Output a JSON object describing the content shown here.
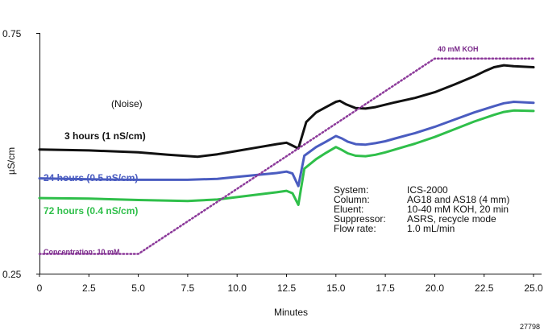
{
  "chart_data": {
    "type": "line",
    "xlabel": "Minutes",
    "ylabel": "µS/cm",
    "xlim": [
      0,
      25
    ],
    "ylim": [
      0.25,
      0.75
    ],
    "x_ticks": [
      "0",
      "2.5",
      "5.0",
      "7.5",
      "10.0",
      "12.5",
      "15.0",
      "17.5",
      "20.0",
      "22.5",
      "25.0"
    ],
    "y_ticks": [
      "0.75",
      "0.25"
    ],
    "y_tick_values": [
      0.75,
      0.25
    ],
    "colors": {
      "three_hours": "#111111",
      "twentyfour_hours": "#4a5cc0",
      "seventytwo_hours": "#2fbf4a",
      "concentration": "#8c3a9a"
    },
    "series": [
      {
        "key": "three_hours",
        "x": [
          0,
          2.5,
          5.0,
          6.5,
          8.0,
          9.0,
          10.0,
          11.0,
          12.0,
          12.5,
          12.8,
          13.1,
          13.5,
          14.0,
          14.5,
          15.0,
          15.2,
          15.5,
          16.0,
          16.5,
          17.0,
          17.5,
          18.0,
          19.0,
          20.0,
          21.0,
          22.0,
          22.5,
          23.0,
          23.5,
          24.0,
          25.0
        ],
        "y": [
          0.508,
          0.506,
          0.502,
          0.497,
          0.493,
          0.498,
          0.505,
          0.512,
          0.519,
          0.522,
          0.516,
          0.51,
          0.565,
          0.585,
          0.596,
          0.607,
          0.609,
          0.602,
          0.594,
          0.593,
          0.596,
          0.601,
          0.606,
          0.615,
          0.627,
          0.643,
          0.66,
          0.67,
          0.679,
          0.683,
          0.681,
          0.679
        ]
      },
      {
        "key": "twentyfour_hours",
        "x": [
          0,
          2.5,
          5.0,
          7.5,
          9.0,
          10.0,
          11.0,
          12.0,
          12.5,
          12.8,
          13.1,
          13.4,
          14.0,
          14.5,
          15.0,
          15.3,
          15.6,
          16.0,
          16.5,
          17.0,
          17.5,
          18.0,
          19.0,
          20.0,
          21.0,
          22.0,
          23.0,
          23.5,
          24.0,
          25.0
        ],
        "y": [
          0.448,
          0.446,
          0.445,
          0.445,
          0.447,
          0.451,
          0.455,
          0.459,
          0.462,
          0.458,
          0.432,
          0.495,
          0.513,
          0.524,
          0.536,
          0.531,
          0.524,
          0.519,
          0.518,
          0.521,
          0.525,
          0.531,
          0.542,
          0.555,
          0.57,
          0.585,
          0.598,
          0.604,
          0.607,
          0.605
        ]
      },
      {
        "key": "seventytwo_hours",
        "x": [
          0,
          2.5,
          5.0,
          7.5,
          9.0,
          10.0,
          11.0,
          12.0,
          12.5,
          12.8,
          13.1,
          13.4,
          14.0,
          14.5,
          15.0,
          15.3,
          15.6,
          16.0,
          16.5,
          17.0,
          17.5,
          18.0,
          19.0,
          20.0,
          21.0,
          22.0,
          23.0,
          23.5,
          24.0,
          25.0
        ],
        "y": [
          0.407,
          0.406,
          0.403,
          0.401,
          0.404,
          0.409,
          0.414,
          0.419,
          0.422,
          0.417,
          0.393,
          0.468,
          0.488,
          0.501,
          0.513,
          0.507,
          0.5,
          0.495,
          0.494,
          0.497,
          0.502,
          0.508,
          0.52,
          0.534,
          0.55,
          0.566,
          0.58,
          0.586,
          0.589,
          0.588
        ]
      },
      {
        "key": "concentration",
        "dotted": true,
        "x": [
          0,
          5.0,
          20.0,
          25.0
        ],
        "y": [
          0.291,
          0.291,
          0.697,
          0.697
        ]
      }
    ]
  },
  "annotations": {
    "noise": "(Noise)",
    "three_hours": "3 hours   (1 nS/cm)",
    "twentyfour_hours": "24 hours   (0.5 nS/cm)",
    "seventytwo_hours": "72 hours   (0.4 nS/cm)",
    "concentration_start": "Concentration: 10 mM",
    "concentration_end": "40 mM KOH",
    "conditions": [
      {
        "label": "System:",
        "value": "ICS-2000"
      },
      {
        "label": "Column:",
        "value": "AG18 and AS18 (4 mm)"
      },
      {
        "label": "Eluent:",
        "value": "10-40 mM KOH, 20 min"
      },
      {
        "label": "Suppressor:",
        "value": "ASRS, recycle mode"
      },
      {
        "label": "Flow rate:",
        "value": "1.0 mL/min"
      }
    ],
    "figure_number": "27798"
  }
}
